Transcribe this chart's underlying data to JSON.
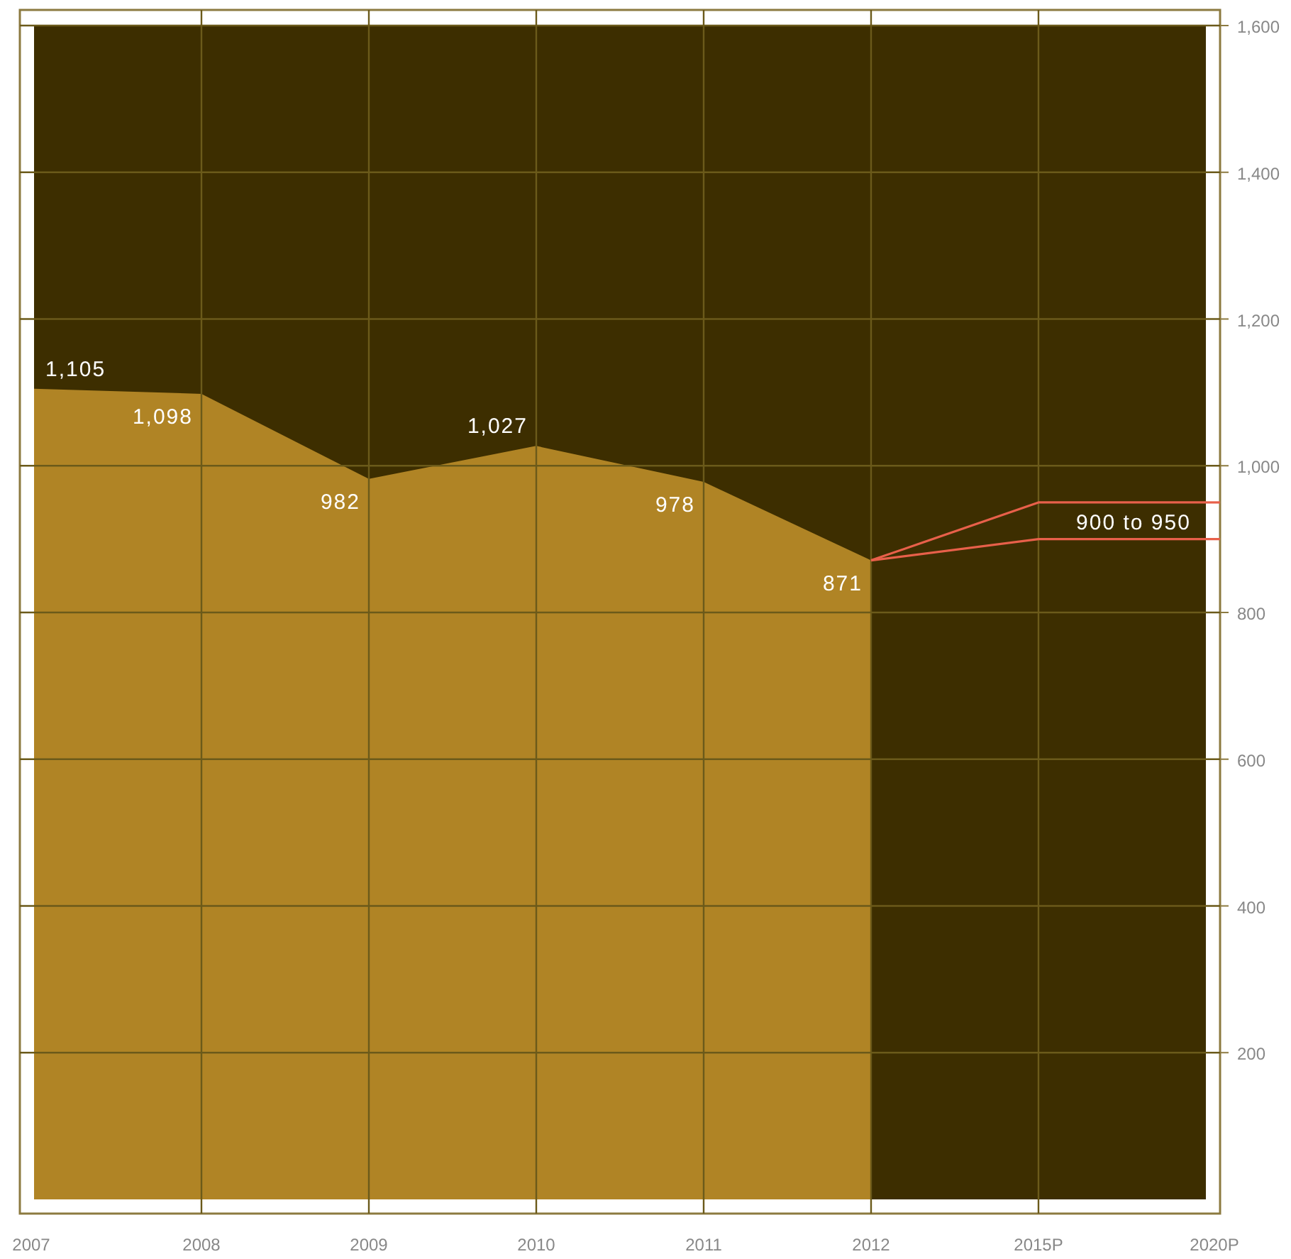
{
  "chart_data": {
    "type": "area",
    "categories": [
      "2007",
      "2008",
      "2009",
      "2010",
      "2011",
      "2012",
      "2015P",
      "2020P"
    ],
    "series": [
      {
        "color": "#b08425",
        "values": [
          1105,
          1098,
          982,
          1027,
          978,
          871,
          null,
          null
        ],
        "value_labels": [
          "1,105",
          "1,098",
          "982",
          "1,027",
          "978",
          "871",
          null,
          null
        ]
      },
      {
        "type": "line",
        "color": "#e8604a",
        "values": [
          null,
          null,
          null,
          null,
          null,
          871,
          900,
          900
        ]
      },
      {
        "type": "line",
        "color": "#e8604a",
        "values": [
          null,
          null,
          null,
          null,
          null,
          871,
          950,
          950
        ]
      }
    ],
    "ylim": [
      0,
      1600
    ],
    "yticks": [
      200,
      400,
      600,
      800,
      {
        "value": 1000,
        "label": "1,000"
      },
      {
        "value": 1200,
        "label": "1,200"
      },
      {
        "value": 1400,
        "label": "1,400"
      },
      {
        "value": 1600,
        "label": "1,600"
      }
    ],
    "grid": true,
    "annotations": [
      "900 to 950"
    ]
  }
}
